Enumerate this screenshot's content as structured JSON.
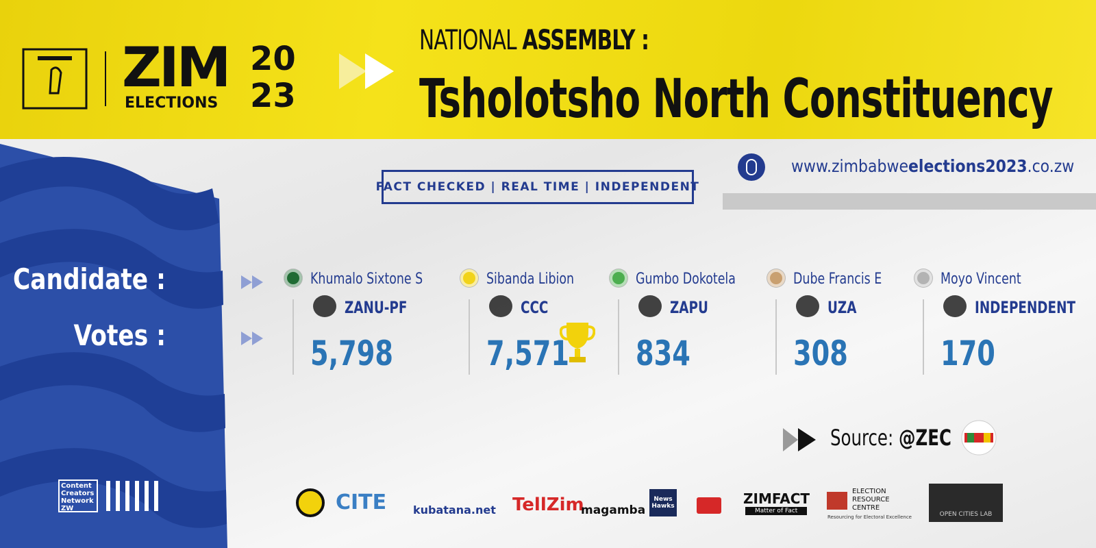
{
  "header": {
    "logo": {
      "zim": "ZIM",
      "elections": "ELECTIONS",
      "year_top": "20",
      "year_bottom": "23"
    },
    "title_prefix": "NATIONAL",
    "title_bold": "ASSEMBLY :",
    "constituency": "Tsholotsho North Constituency"
  },
  "tagline": "FACT CHECKED | REAL TIME | INDEPENDENT",
  "website": {
    "prefix": "www.zimbabwe",
    "bold": "elections2023",
    "suffix": ".co.zw"
  },
  "labels": {
    "candidate": "Candidate :",
    "votes": "Votes :"
  },
  "candidates": [
    {
      "name": "Khumalo Sixtone S",
      "party": "ZANU-PF",
      "votes": "5,798",
      "color": "#1f6b33"
    },
    {
      "name": "Sibanda Libion",
      "party": "CCC",
      "votes": "7,571",
      "color": "#f1d31a",
      "winner": true
    },
    {
      "name": "Gumbo Dokotela",
      "party": "ZAPU",
      "votes": "834",
      "color": "#4cae4f"
    },
    {
      "name": "Dube Francis E",
      "party": "UZA",
      "votes": "308",
      "color": "#c9a070"
    },
    {
      "name": "Moyo Vincent",
      "party": "INDEPENDENT",
      "votes": "170",
      "color": "#b3b3b3"
    }
  ],
  "source": {
    "label": "Source:",
    "handle": "@ZEC"
  },
  "partners": {
    "ccn": "Content Creators Network ZW",
    "cite": "CITE",
    "kubatana": "kubatana.net",
    "tellzim": "TellZim",
    "magamba": "magamba",
    "newshawks": "News Hawks",
    "zimfact": "ZIMFACT",
    "zimfact_tag": "Matter of Fact",
    "erc": "ELECTION RESOURCE CENTRE",
    "erc_tag": "Resourcing for Electoral Excellence",
    "ocl": "OPEN CITIES LAB"
  }
}
